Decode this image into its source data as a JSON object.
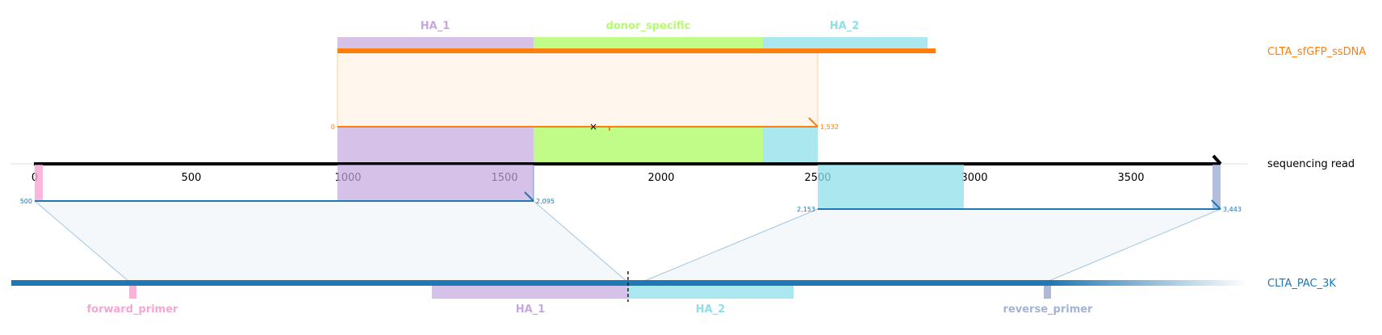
{
  "colors": {
    "ssdna": "#ff7f0e",
    "ref": "#1f77b4",
    "ha1": "#c5a8e0",
    "donor": "#b6fb73",
    "ha2": "#8fdfe9",
    "fwd": "#f7a6d2",
    "rev": "#a3b3d6",
    "axis": "#000000"
  },
  "targets": {
    "ssdna": "CLTA_sfGFP_ssDNA",
    "read": "sequencing read",
    "ref": "CLTA_PAC_3K"
  },
  "features": {
    "top_ha1": "HA_1",
    "top_donor": "donor_specific",
    "top_ha2": "HA_2",
    "bottom_fwd": "forward_primer",
    "bottom_ha1": "HA_1",
    "bottom_ha2": "HA_2",
    "bottom_rev": "reverse_primer"
  },
  "axis": {
    "ticks": [
      "0",
      "500",
      "1000",
      "1500",
      "2000",
      "2500",
      "3000",
      "3500"
    ]
  },
  "alignment_labels": {
    "ssdna_start": "0",
    "ssdna_end": "1,532",
    "ref1_start": "500",
    "ref1_end": "2,095",
    "ref2_start": "2,153",
    "ref2_end": "3,443"
  }
}
